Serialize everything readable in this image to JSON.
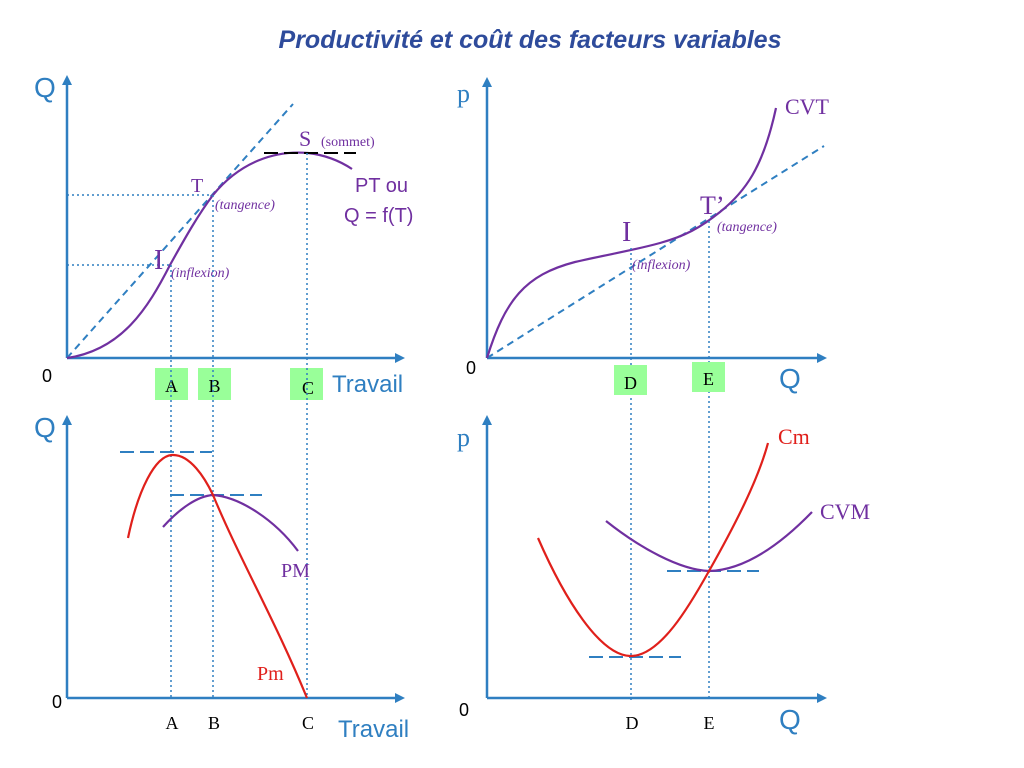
{
  "title": "Productivité et coût des facteurs variables",
  "colors": {
    "axis": "#2f7fc1",
    "guide": "#2f7fc1",
    "purple": "#7030a0",
    "red": "#e0201b",
    "highlight": "#99ff99",
    "title": "#2e4b9b",
    "label": "#000000"
  },
  "panel_top_left": {
    "y_axis_label": "Q",
    "origin": "0",
    "x_axis_label": "Travail",
    "point_s": "S",
    "point_s_note": "(sommet)",
    "point_t": "T",
    "point_t_note": "(tangence)",
    "point_i": "I",
    "point_i_note": "(inflexion)",
    "curve_label_line1": "PT ou",
    "curve_label_line2": "Q = f(T)",
    "ticks": [
      "A",
      "B",
      "C"
    ]
  },
  "panel_top_right": {
    "y_axis_label": "p",
    "origin": "0",
    "x_axis_label": "Q",
    "curve_label": "CVT",
    "point_t": "T’",
    "point_t_note": "(tangence)",
    "point_i": "I",
    "point_i_note": "(inflexion)",
    "ticks": [
      "D",
      "E"
    ]
  },
  "panel_bottom_left": {
    "y_axis_label": "Q",
    "origin": "0",
    "x_axis_label": "Travail",
    "curve_pm": "PM",
    "curve_pmarg": "Pm",
    "ticks": [
      "A",
      "B",
      "C"
    ]
  },
  "panel_bottom_right": {
    "y_axis_label": "p",
    "origin": "0",
    "x_axis_label": "Q",
    "curve_cm": "Cm",
    "curve_cvm": "CVM",
    "ticks": [
      "D",
      "E"
    ]
  }
}
